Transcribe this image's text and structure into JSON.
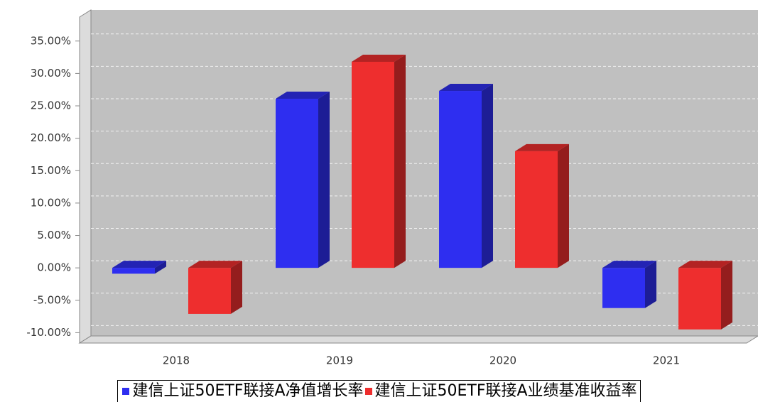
{
  "chart_data": {
    "type": "bar",
    "categories": [
      "2018",
      "2019",
      "2020",
      "2021"
    ],
    "series": [
      {
        "name": "建信上证50ETF联接A净值增长率",
        "color": "#2e2ef0",
        "values": [
          -0.9,
          26.1,
          27.3,
          -6.2
        ]
      },
      {
        "name": "建信上证50ETF联接A业绩基准收益率",
        "color": "#ee2e2e",
        "values": [
          -7.1,
          31.8,
          18.0,
          -9.5
        ]
      }
    ],
    "ylim": [
      -11.6,
      38.7
    ],
    "yticks": [
      {
        "value": -10,
        "label": "-10.00%"
      },
      {
        "value": -5,
        "label": "-5.00%"
      },
      {
        "value": 0,
        "label": "0.00%"
      },
      {
        "value": 5,
        "label": "5.00%"
      },
      {
        "value": 10,
        "label": "10.00%"
      },
      {
        "value": 15,
        "label": "15.00%"
      },
      {
        "value": 20,
        "label": "20.00%"
      },
      {
        "value": 25,
        "label": "25.00%"
      },
      {
        "value": 30,
        "label": "30.00%"
      },
      {
        "value": 35,
        "label": "35.00%"
      }
    ],
    "grid": true
  }
}
